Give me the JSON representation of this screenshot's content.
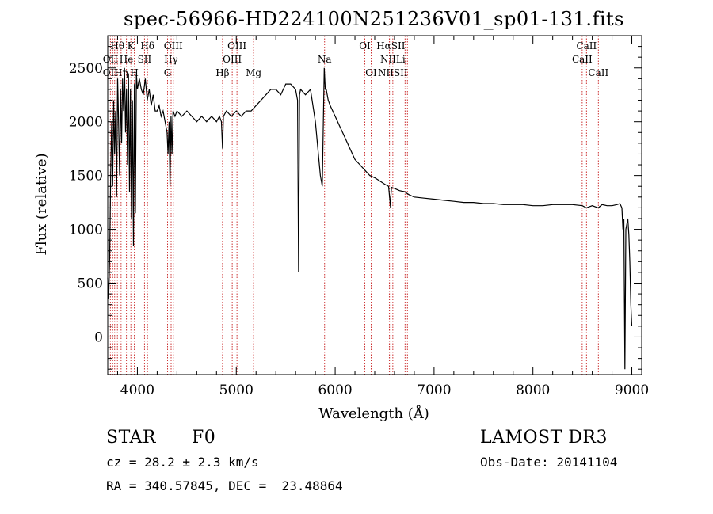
{
  "chart_data": {
    "type": "line",
    "title": "spec-56966-HD224100N251236V01_sp01-131.fits",
    "xlabel": "Wavelength (Å)",
    "ylabel": "Flux (relative)",
    "xlim": [
      3700,
      9100
    ],
    "ylim": [
      -350,
      2800
    ],
    "xticks": [
      4000,
      5000,
      6000,
      7000,
      8000,
      9000
    ],
    "yticks": [
      0,
      500,
      1000,
      1500,
      2000,
      2500
    ],
    "grid": false,
    "line_color": "#000000",
    "marker_color": "#cc3333",
    "series": [
      {
        "x": [
          3700,
          3710,
          3720,
          3730,
          3740,
          3750,
          3760,
          3770,
          3780,
          3790,
          3800,
          3810,
          3820,
          3830,
          3840,
          3850,
          3860,
          3870,
          3880,
          3890,
          3900,
          3910,
          3920,
          3930,
          3940,
          3950,
          3960,
          3970,
          3980,
          3990,
          4000,
          4020,
          4040,
          4060,
          4080,
          4100,
          4120,
          4140,
          4160,
          4180,
          4200,
          4220,
          4240,
          4260,
          4280,
          4300,
          4310,
          4320,
          4330,
          4340,
          4350,
          4360,
          4380,
          4400,
          4450,
          4500,
          4550,
          4600,
          4650,
          4700,
          4750,
          4800,
          4830,
          4850,
          4861,
          4870,
          4900,
          4950,
          5000,
          5050,
          5100,
          5150,
          5200,
          5250,
          5300,
          5350,
          5400,
          5450,
          5500,
          5550,
          5600,
          5620,
          5630,
          5640,
          5650,
          5700,
          5750,
          5800,
          5850,
          5870,
          5890,
          5900,
          5910,
          5930,
          5950,
          6000,
          6050,
          6100,
          6150,
          6200,
          6250,
          6300,
          6350,
          6400,
          6450,
          6500,
          6540,
          6560,
          6563,
          6570,
          6600,
          6650,
          6700,
          6750,
          6800,
          6900,
          7000,
          7100,
          7200,
          7300,
          7400,
          7500,
          7600,
          7700,
          7800,
          7900,
          8000,
          8100,
          8200,
          8300,
          8400,
          8500,
          8540,
          8600,
          8660,
          8700,
          8750,
          8800,
          8850,
          8880,
          8900,
          8910,
          8920,
          8930,
          8940,
          8950,
          8960,
          8970,
          8980,
          8990,
          9000
        ],
        "y": [
          550,
          350,
          750,
          1500,
          2000,
          1400,
          2200,
          1700,
          2100,
          1300,
          2400,
          2000,
          1500,
          2300,
          1800,
          2400,
          2100,
          2500,
          1900,
          2300,
          1600,
          2450,
          1350,
          2300,
          1100,
          2200,
          850,
          2350,
          1150,
          2450,
          2300,
          2400,
          2300,
          2250,
          2400,
          2200,
          2300,
          2150,
          2250,
          2100,
          2100,
          2150,
          2050,
          2100,
          2000,
          1900,
          1700,
          2000,
          1400,
          2050,
          1700,
          2100,
          2050,
          2100,
          2050,
          2100,
          2050,
          2000,
          2050,
          2000,
          2050,
          2000,
          2050,
          2000,
          1750,
          2050,
          2100,
          2050,
          2100,
          2050,
          2100,
          2100,
          2150,
          2200,
          2250,
          2300,
          2300,
          2250,
          2350,
          2350,
          2300,
          2200,
          600,
          2250,
          2300,
          2250,
          2300,
          2000,
          1500,
          1400,
          2500,
          2300,
          2300,
          2200,
          2150,
          2050,
          1950,
          1850,
          1750,
          1650,
          1600,
          1550,
          1500,
          1480,
          1450,
          1420,
          1400,
          1200,
          1300,
          1390,
          1380,
          1360,
          1350,
          1320,
          1300,
          1290,
          1280,
          1270,
          1260,
          1250,
          1250,
          1240,
          1240,
          1230,
          1230,
          1230,
          1220,
          1220,
          1230,
          1230,
          1230,
          1220,
          1200,
          1220,
          1200,
          1230,
          1220,
          1220,
          1230,
          1240,
          1200,
          1000,
          1100,
          -300,
          1000,
          1050,
          1100,
          950,
          700,
          300,
          100
        ]
      }
    ],
    "line_markers": [
      {
        "label": "Hθ",
        "x": 3798,
        "row": 1
      },
      {
        "label": "K",
        "x": 3934,
        "row": 1
      },
      {
        "label": "Hδ",
        "x": 4102,
        "row": 1
      },
      {
        "label": "OIII",
        "x": 4363,
        "row": 1
      },
      {
        "label": "OIII",
        "x": 5007,
        "row": 1
      },
      {
        "label": "OI",
        "x": 6300,
        "row": 1
      },
      {
        "label": "HαSII",
        "x": 6563,
        "row": 1
      },
      {
        "label": "CaII",
        "x": 8542,
        "row": 1
      },
      {
        "label": "OII",
        "x": 3727,
        "row": 2
      },
      {
        "label": "He",
        "x": 3889,
        "row": 2
      },
      {
        "label": "SII",
        "x": 4072,
        "row": 2
      },
      {
        "label": "Hγ",
        "x": 4341,
        "row": 2
      },
      {
        "label": "OIII",
        "x": 4959,
        "row": 2
      },
      {
        "label": "Na",
        "x": 5893,
        "row": 2
      },
      {
        "label": "NIILi",
        "x": 6583,
        "row": 2
      },
      {
        "label": "CaII",
        "x": 8498,
        "row": 2
      },
      {
        "label": "OII",
        "x": 3727,
        "row": 3
      },
      {
        "label": "Hη",
        "x": 3835,
        "row": 3
      },
      {
        "label": "H",
        "x": 3969,
        "row": 3
      },
      {
        "label": "G",
        "x": 4305,
        "row": 3
      },
      {
        "label": "Hβ",
        "x": 4861,
        "row": 3
      },
      {
        "label": "Mg",
        "x": 5175,
        "row": 3
      },
      {
        "label": "OI",
        "x": 6364,
        "row": 3
      },
      {
        "label": "NIISII",
        "x": 6583,
        "row": 3
      },
      {
        "label": "CaII",
        "x": 8662,
        "row": 3
      }
    ],
    "marker_line_x": [
      3727,
      3750,
      3770,
      3798,
      3835,
      3889,
      3934,
      3969,
      4072,
      4102,
      4305,
      4341,
      4363,
      4861,
      4959,
      5007,
      5175,
      5893,
      6300,
      6364,
      6548,
      6563,
      6583,
      6707,
      6716,
      6731,
      8498,
      8542,
      8662
    ]
  },
  "info": {
    "object_class": "STAR",
    "subclass": "F0",
    "survey": "LAMOST DR3",
    "redshift": "cz = 28.2 ± 2.3 km/s",
    "obs_date": "Obs-Date: 20141104",
    "coords": "RA = 340.57845, DEC =  23.48864"
  }
}
